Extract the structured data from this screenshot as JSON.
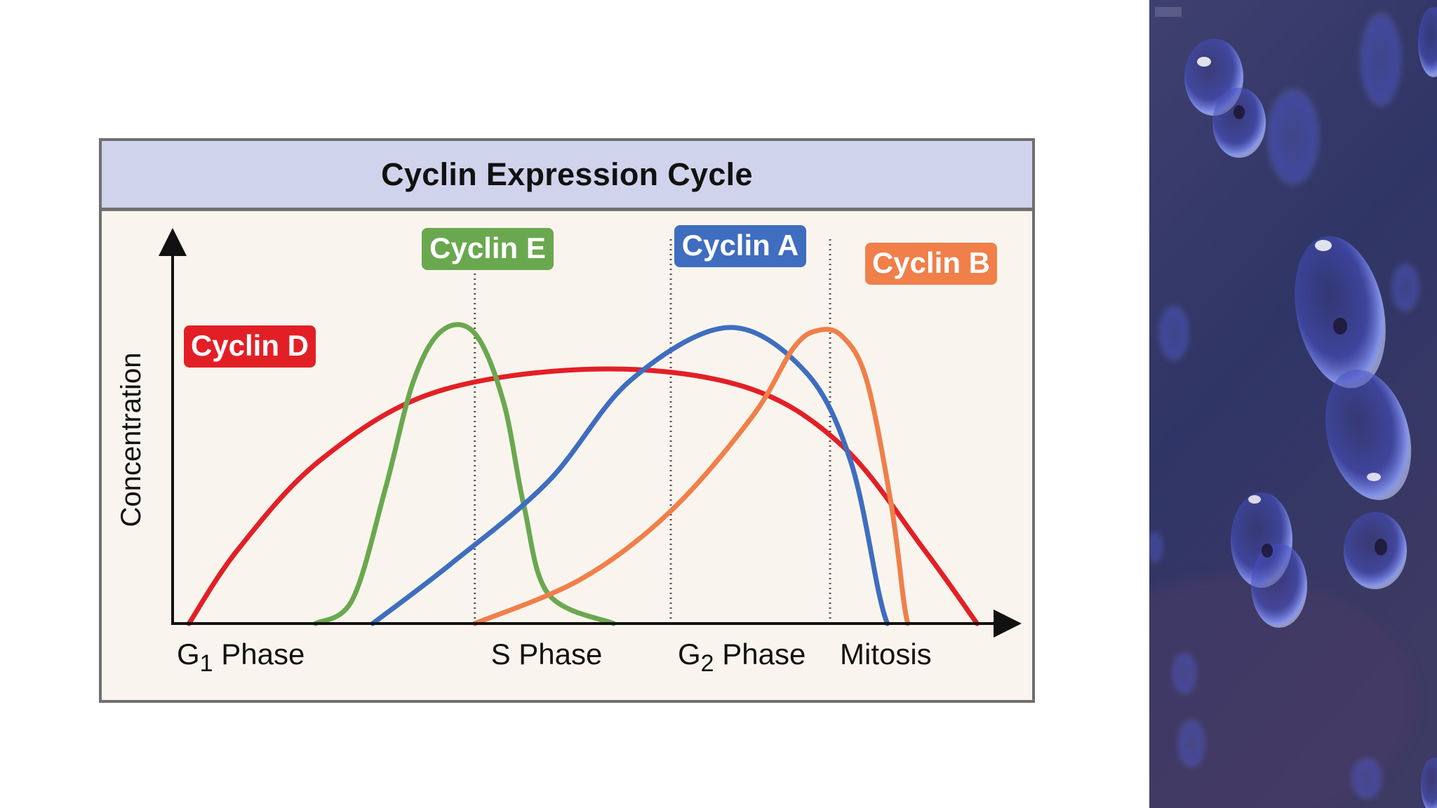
{
  "slide": {
    "photo": {
      "description_icon": "blue-cell-bubbles-image"
    }
  },
  "chart_data": {
    "type": "line",
    "title": "Cyclin Expression Cycle",
    "ylabel": "Concentration",
    "xlabel": "",
    "x_categories": [
      {
        "main": "G",
        "sub": "1",
        "rest": " Phase"
      },
      {
        "main": "S Phase",
        "sub": "",
        "rest": ""
      },
      {
        "main": "G",
        "sub": "2",
        "rest": " Phase"
      },
      {
        "main": "Mitosis",
        "sub": "",
        "rest": ""
      }
    ],
    "x_range": [
      0,
      100
    ],
    "y_range": [
      0,
      100
    ],
    "phase_boundaries": [
      37,
      61,
      80.5
    ],
    "grid": false,
    "axis_ticks": false,
    "series": [
      {
        "name": "Cyclin D",
        "color": "#e31f26",
        "points": [
          [
            2,
            0
          ],
          [
            8,
            25
          ],
          [
            18,
            55
          ],
          [
            32,
            78
          ],
          [
            52,
            86
          ],
          [
            70,
            80
          ],
          [
            82,
            60
          ],
          [
            92,
            25
          ],
          [
            98.5,
            0
          ]
        ]
      },
      {
        "name": "Cyclin E",
        "color": "#6aa84f",
        "points": [
          [
            17.5,
            0
          ],
          [
            22,
            8
          ],
          [
            26,
            45
          ],
          [
            29.5,
            82
          ],
          [
            33,
            99
          ],
          [
            37,
            98
          ],
          [
            40.5,
            75
          ],
          [
            43,
            40
          ],
          [
            46,
            10
          ],
          [
            54,
            0
          ]
        ]
      },
      {
        "name": "Cyclin A",
        "color": "#3f6dbf",
        "points": [
          [
            24.5,
            0
          ],
          [
            34,
            20
          ],
          [
            46,
            48
          ],
          [
            56,
            82
          ],
          [
            68,
            100
          ],
          [
            77.5,
            85
          ],
          [
            83,
            55
          ],
          [
            86.5,
            10
          ],
          [
            87.5,
            0
          ]
        ]
      },
      {
        "name": "Cyclin B",
        "color": "#f07f4a",
        "points": [
          [
            37,
            0
          ],
          [
            50,
            15
          ],
          [
            61,
            38
          ],
          [
            71,
            70
          ],
          [
            76,
            93
          ],
          [
            79,
            99
          ],
          [
            82,
            97
          ],
          [
            85,
            82
          ],
          [
            88,
            40
          ],
          [
            89.5,
            8
          ],
          [
            90,
            0
          ]
        ]
      }
    ]
  }
}
